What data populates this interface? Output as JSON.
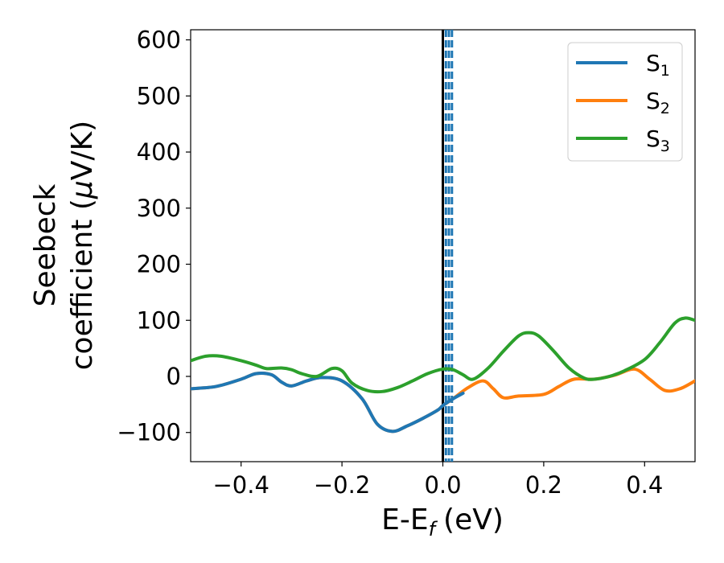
{
  "chart_data": {
    "type": "line",
    "xlabel": "E-E",
    "xlabel_sub": "f",
    "xlabel_unit": "(eV)",
    "ylabel_line1": "Seebeck",
    "ylabel_line2": "coefficient  (",
    "ylabel_mu": "μ",
    "ylabel_unit": "V/K)",
    "xlim": [
      -0.5,
      0.5
    ],
    "ylim": [
      -152,
      618
    ],
    "xticks": [
      -0.4,
      -0.2,
      0.0,
      0.2,
      0.4
    ],
    "xtick_labels": [
      "−0.4",
      "−0.2",
      "0.0",
      "0.2",
      "0.4"
    ],
    "yticks": [
      -100,
      0,
      100,
      200,
      300,
      400,
      500,
      600
    ],
    "ytick_labels": [
      "−100",
      "0",
      "100",
      "200",
      "300",
      "400",
      "500",
      "600"
    ],
    "grid": false,
    "legend_position": "top-right",
    "vline_solid": {
      "x": 0.0,
      "color": "#000000"
    },
    "vlines_dashed": {
      "x": [
        0.006,
        0.012,
        0.018
      ],
      "color": "#1f77b4"
    },
    "series": [
      {
        "name": "S",
        "name_sub": "1",
        "color": "#1f77b4",
        "x": [
          -0.5,
          -0.45,
          -0.4,
          -0.37,
          -0.34,
          -0.32,
          -0.3,
          -0.27,
          -0.24,
          -0.2,
          -0.16,
          -0.13,
          -0.1,
          -0.07,
          -0.04,
          -0.01,
          0.0,
          0.02,
          0.04
        ],
        "y": [
          -22,
          -18,
          -5,
          5,
          3,
          -10,
          -17,
          -8,
          -2,
          -8,
          -40,
          -85,
          -98,
          -88,
          -75,
          -60,
          -52,
          -40,
          -30
        ]
      },
      {
        "name": "S",
        "name_sub": "2",
        "color": "#ff7f0e",
        "x": [
          -0.5,
          -0.45,
          -0.4,
          -0.37,
          -0.34,
          -0.32,
          -0.3,
          -0.27,
          -0.24,
          -0.2,
          -0.16,
          -0.13,
          -0.1,
          -0.07,
          -0.04,
          -0.01,
          0.0,
          0.02,
          0.05,
          0.08,
          0.1,
          0.12,
          0.15,
          0.2,
          0.23,
          0.26,
          0.3,
          0.34,
          0.38,
          0.41,
          0.44,
          0.47,
          0.5
        ],
        "y": [
          -22,
          -18,
          -5,
          5,
          3,
          -10,
          -17,
          -8,
          -2,
          -8,
          -40,
          -85,
          -98,
          -88,
          -75,
          -60,
          -52,
          -40,
          -20,
          -8,
          -22,
          -38,
          -35,
          -32,
          -18,
          -5,
          -5,
          2,
          13,
          -5,
          -25,
          -22,
          -8
        ]
      },
      {
        "name": "S",
        "name_sub": "3",
        "color": "#2ca02c",
        "x": [
          -0.5,
          -0.47,
          -0.44,
          -0.4,
          -0.37,
          -0.35,
          -0.32,
          -0.3,
          -0.28,
          -0.25,
          -0.22,
          -0.2,
          -0.18,
          -0.15,
          -0.12,
          -0.09,
          -0.06,
          -0.03,
          0.0,
          0.02,
          0.04,
          0.06,
          0.09,
          0.12,
          0.15,
          0.17,
          0.19,
          0.22,
          0.25,
          0.28,
          0.3,
          0.33,
          0.36,
          0.4,
          0.43,
          0.46,
          0.48,
          0.5
        ],
        "y": [
          28,
          36,
          36,
          28,
          20,
          14,
          15,
          12,
          5,
          0,
          14,
          10,
          -12,
          -25,
          -27,
          -20,
          -8,
          5,
          13,
          12,
          3,
          -5,
          15,
          45,
          72,
          78,
          72,
          45,
          15,
          -3,
          -5,
          0,
          10,
          30,
          60,
          95,
          104,
          100
        ]
      }
    ]
  }
}
